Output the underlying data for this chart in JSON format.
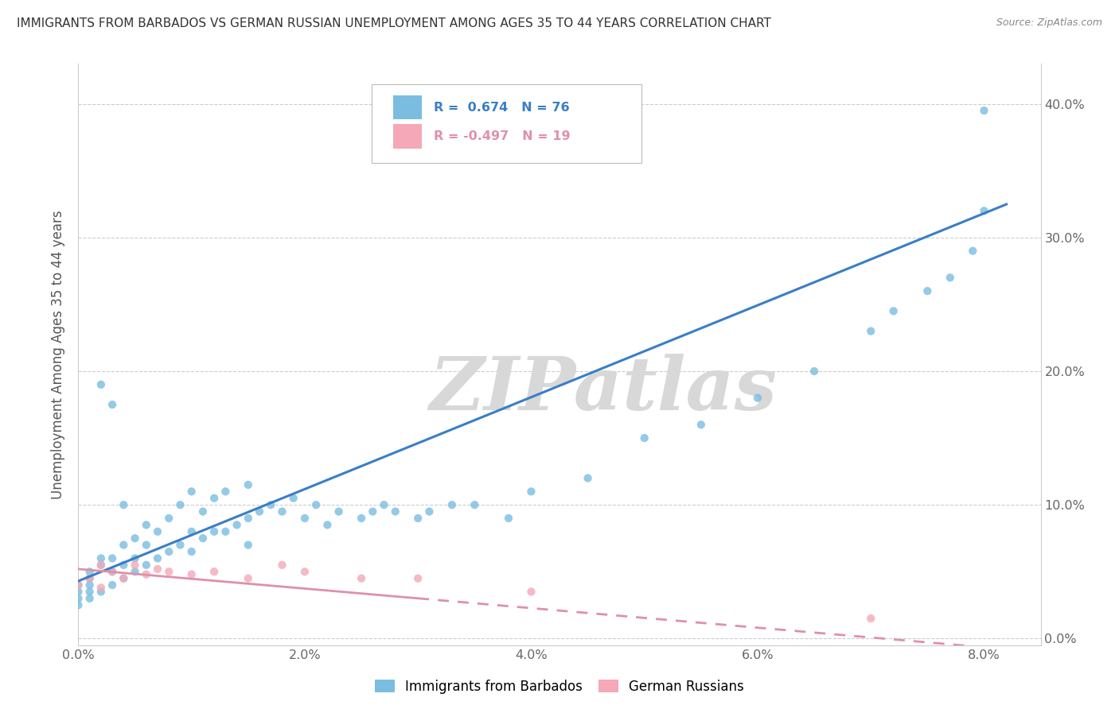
{
  "title": "IMMIGRANTS FROM BARBADOS VS GERMAN RUSSIAN UNEMPLOYMENT AMONG AGES 35 TO 44 YEARS CORRELATION CHART",
  "source": "Source: ZipAtlas.com",
  "ylabel": "Unemployment Among Ages 35 to 44 years",
  "xlim": [
    0.0,
    0.085
  ],
  "ylim": [
    -0.005,
    0.43
  ],
  "barbados_R": 0.674,
  "barbados_N": 76,
  "german_R": -0.497,
  "german_N": 19,
  "barbados_color": "#7BBDE0",
  "german_color": "#F4A8B8",
  "barbados_line_color": "#3A7EC6",
  "german_line_color": "#E090A8",
  "watermark": "ZIPatlas",
  "legend_label_barbados": "Immigrants from Barbados",
  "legend_label_german": "German Russians",
  "barbados_line_x0": 0.0,
  "barbados_line_y0": 0.043,
  "barbados_line_x1": 0.082,
  "barbados_line_y1": 0.325,
  "german_line_x0": 0.0,
  "german_line_y0": 0.052,
  "german_line_x1": 0.082,
  "german_line_y1": -0.008,
  "barbados_scatter_x": [
    0.0,
    0.0,
    0.0,
    0.0,
    0.001,
    0.001,
    0.001,
    0.001,
    0.001,
    0.002,
    0.002,
    0.002,
    0.002,
    0.003,
    0.003,
    0.003,
    0.003,
    0.004,
    0.004,
    0.004,
    0.004,
    0.005,
    0.005,
    0.005,
    0.006,
    0.006,
    0.006,
    0.007,
    0.007,
    0.008,
    0.008,
    0.009,
    0.009,
    0.01,
    0.01,
    0.01,
    0.011,
    0.011,
    0.012,
    0.012,
    0.013,
    0.013,
    0.014,
    0.015,
    0.015,
    0.015,
    0.016,
    0.017,
    0.018,
    0.019,
    0.02,
    0.021,
    0.022,
    0.023,
    0.025,
    0.026,
    0.027,
    0.028,
    0.03,
    0.031,
    0.033,
    0.035,
    0.038,
    0.04,
    0.045,
    0.05,
    0.055,
    0.06,
    0.065,
    0.07,
    0.072,
    0.075,
    0.077,
    0.079,
    0.08,
    0.08
  ],
  "barbados_scatter_y": [
    0.025,
    0.03,
    0.035,
    0.04,
    0.03,
    0.035,
    0.04,
    0.045,
    0.05,
    0.035,
    0.055,
    0.06,
    0.19,
    0.04,
    0.05,
    0.06,
    0.175,
    0.045,
    0.055,
    0.07,
    0.1,
    0.05,
    0.06,
    0.075,
    0.055,
    0.07,
    0.085,
    0.06,
    0.08,
    0.065,
    0.09,
    0.07,
    0.1,
    0.065,
    0.08,
    0.11,
    0.075,
    0.095,
    0.08,
    0.105,
    0.08,
    0.11,
    0.085,
    0.07,
    0.09,
    0.115,
    0.095,
    0.1,
    0.095,
    0.105,
    0.09,
    0.1,
    0.085,
    0.095,
    0.09,
    0.095,
    0.1,
    0.095,
    0.09,
    0.095,
    0.1,
    0.1,
    0.09,
    0.11,
    0.12,
    0.15,
    0.16,
    0.18,
    0.2,
    0.23,
    0.245,
    0.26,
    0.27,
    0.29,
    0.32,
    0.395
  ],
  "german_scatter_x": [
    0.0,
    0.001,
    0.002,
    0.002,
    0.003,
    0.004,
    0.005,
    0.006,
    0.007,
    0.008,
    0.01,
    0.012,
    0.015,
    0.018,
    0.02,
    0.025,
    0.03,
    0.04,
    0.07
  ],
  "german_scatter_y": [
    0.04,
    0.045,
    0.038,
    0.055,
    0.05,
    0.045,
    0.055,
    0.048,
    0.052,
    0.05,
    0.048,
    0.05,
    0.045,
    0.055,
    0.05,
    0.045,
    0.045,
    0.035,
    0.015
  ]
}
